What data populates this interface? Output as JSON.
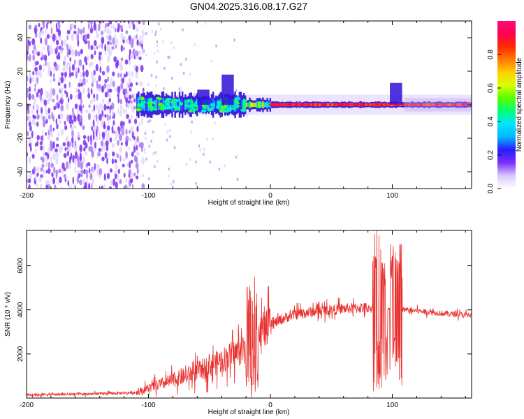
{
  "title": "GN04.2025.316.08.17.G27",
  "colors": {
    "series": "#e8302e",
    "frame": "#000000",
    "spectrum_scatter": "#7a35e6",
    "spectrum_band": "#3010d8"
  },
  "chart_data": [
    {
      "type": "heatmap",
      "name": "spectrogram",
      "xlabel": "Height of straight line (km)",
      "ylabel": "Frequency (Hz)",
      "xlim": [
        -200,
        165
      ],
      "ylim": [
        -50,
        50
      ],
      "xticks": [
        -200,
        -100,
        0,
        100
      ],
      "xtick_labels": [
        "-200",
        "-100",
        "0",
        "100"
      ],
      "yticks": [
        -40,
        -20,
        0,
        20,
        40
      ],
      "ytick_labels": [
        "-40",
        "-20",
        "0",
        "20",
        "40"
      ],
      "noise_region_x": [
        -200,
        -105
      ],
      "signal_band_center_hz": 0,
      "signal_band_start_x": -110
    },
    {
      "type": "colorbar",
      "name": "colorbar",
      "label": "Normalized spectral amplitude",
      "range": [
        0,
        1
      ],
      "ticks": [
        0.0,
        0.2,
        0.4,
        0.6,
        0.8
      ],
      "tick_labels": [
        "0.0",
        "0.2",
        "0.4",
        "0.6",
        "0.8"
      ],
      "colormap": [
        "#ffffff",
        "#d8c8ff",
        "#7b2ff7",
        "#2a1bff",
        "#00b7ff",
        "#00e5ff",
        "#00ff7a",
        "#58ff00",
        "#d8ff00",
        "#ffd000",
        "#ff7a00",
        "#ff2a00",
        "#ff0055",
        "#ff0a78"
      ]
    },
    {
      "type": "line",
      "name": "snr",
      "xlabel": "Height of straight line (km)",
      "ylabel": "SNR (10 * v/v)",
      "xlim": [
        -200,
        165
      ],
      "ylim": [
        0,
        7600
      ],
      "xticks": [
        -200,
        -100,
        0,
        100
      ],
      "xtick_labels": [
        "-200",
        "-100",
        "0",
        "100"
      ],
      "yticks": [
        2000,
        4000,
        6000
      ],
      "ytick_labels": [
        "2000",
        "4000",
        "6000"
      ],
      "profile_x": [
        -200,
        -150,
        -110,
        -100,
        -80,
        -60,
        -40,
        -20,
        -10,
        0,
        10,
        20,
        40,
        60,
        80,
        90,
        100,
        110,
        120,
        140,
        165
      ],
      "profile_y": [
        150,
        180,
        250,
        450,
        800,
        1200,
        1700,
        2300,
        2900,
        3300,
        3600,
        3800,
        3950,
        4050,
        4100,
        4000,
        4000,
        4000,
        3950,
        3850,
        3750
      ],
      "bursts": [
        {
          "x": [
            -20,
            -10
          ],
          "amplitude": 2600
        },
        {
          "x": [
            84,
            96
          ],
          "amplitude": 3600
        },
        {
          "x": [
            98,
            108
          ],
          "amplitude": 3500
        }
      ]
    }
  ]
}
